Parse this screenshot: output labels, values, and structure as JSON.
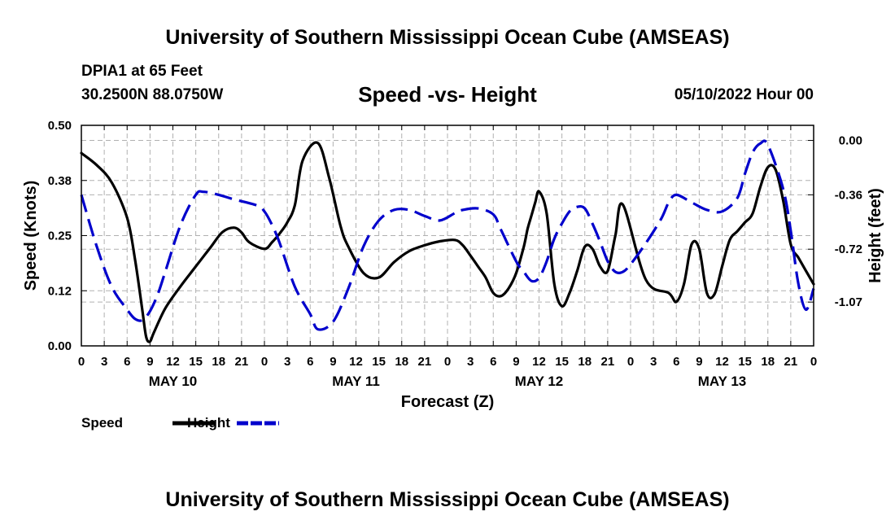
{
  "page": {
    "title_top": "University of Southern Mississippi Ocean Cube (AMSEAS)",
    "title_bottom": "University of Southern Mississippi Ocean Cube (AMSEAS)",
    "station": "DPIA1 at 65 Feet",
    "coordinates": "30.2500N  88.0750W",
    "subtitle": "Speed -vs- Height",
    "datetime": "05/10/2022 Hour 00"
  },
  "chart_data": {
    "type": "line",
    "title": "Speed -vs- Height",
    "xlabel": "Forecast (Z)",
    "ylabel": "Speed (Knots)",
    "y2label": "Height (feet)",
    "xlim": [
      0,
      96
    ],
    "ylim": [
      0,
      0.5
    ],
    "y2lim": [
      -1.36,
      0.1
    ],
    "yticks": [
      "0.00",
      "0.12",
      "0.25",
      "0.38",
      "0.50"
    ],
    "yticks_values": [
      0,
      0.125,
      0.25,
      0.375,
      0.5
    ],
    "y2ticks": [
      "0.00",
      "-0.36",
      "-0.72",
      "-1.07"
    ],
    "y2ticks_values": [
      0,
      -0.36,
      -0.72,
      -1.07
    ],
    "xtick_labels": [
      "0",
      "3",
      "6",
      "9",
      "12",
      "15",
      "18",
      "21",
      "0",
      "3",
      "6",
      "9",
      "12",
      "15",
      "18",
      "21",
      "0",
      "3",
      "6",
      "9",
      "12",
      "15",
      "18",
      "21",
      "0",
      "3",
      "6",
      "9",
      "12",
      "15",
      "18",
      "21",
      "0"
    ],
    "day_labels": [
      {
        "label": "MAY 10",
        "x": 12
      },
      {
        "label": "MAY 11",
        "x": 36
      },
      {
        "label": "MAY 12",
        "x": 60
      },
      {
        "label": "MAY 13",
        "x": 84
      }
    ],
    "grid": true,
    "legend": [
      "Speed",
      "Height"
    ],
    "series": [
      {
        "name": "Speed",
        "color": "#000000",
        "style": "solid",
        "axis": "left",
        "x": [
          0,
          2,
          4,
          6,
          7,
          8,
          8.5,
          9,
          9.5,
          11,
          13,
          15,
          17,
          18.5,
          20,
          21,
          22,
          24,
          25,
          26,
          27,
          28,
          29,
          31,
          32.5,
          34,
          35,
          37,
          39,
          41,
          43,
          45,
          47,
          49,
          50,
          51,
          52,
          53,
          54,
          55,
          56,
          57,
          58,
          58.5,
          59,
          59.5,
          60,
          61,
          62,
          63,
          64,
          65,
          66,
          67,
          68,
          69,
          70,
          71,
          74,
          77,
          78,
          79,
          80,
          81,
          82,
          83,
          84,
          85,
          86,
          87,
          88,
          89,
          90,
          91,
          92,
          93,
          94,
          95,
          96
        ],
        "values": [
          0.437,
          0.41,
          0.37,
          0.29,
          0.2,
          0.08,
          0.02,
          0.01,
          0.03,
          0.085,
          0.135,
          0.18,
          0.225,
          0.258,
          0.268,
          0.257,
          0.235,
          0.22,
          0.235,
          0.255,
          0.28,
          0.32,
          0.42,
          0.46,
          0.38,
          0.27,
          0.225,
          0.165,
          0.155,
          0.19,
          0.215,
          0.228,
          0.237,
          0.24,
          0.228,
          0.205,
          0.18,
          0.155,
          0.12,
          0.113,
          0.13,
          0.165,
          0.225,
          0.265,
          0.295,
          0.325,
          0.35,
          0.3,
          0.14,
          0.09,
          0.12,
          0.17,
          0.225,
          0.22,
          0.18,
          0.17,
          0.25,
          0.32,
          0.15,
          0.12,
          0.1,
          0.14,
          0.23,
          0.22,
          0.12,
          0.117,
          0.18,
          0.24,
          0.26,
          0.28,
          0.3,
          0.36,
          0.405,
          0.4,
          0.33,
          0.23,
          0.2,
          0.17,
          0.14
        ]
      },
      {
        "name": "Height",
        "color": "#0000cc",
        "style": "dashed",
        "axis": "right",
        "x": [
          0,
          2,
          4,
          6,
          7,
          8,
          9,
          10,
          11,
          13,
          15,
          16,
          18,
          20,
          23,
          24,
          25,
          26,
          28,
          30,
          31,
          33,
          35,
          37,
          39,
          41,
          43,
          45,
          47,
          49,
          50,
          52,
          54,
          55,
          57,
          58,
          59,
          60,
          61,
          62,
          63,
          64,
          65,
          66,
          67,
          68,
          69,
          70,
          71,
          72,
          74,
          76,
          77,
          78,
          80,
          82,
          84,
          86,
          87,
          88,
          89,
          90,
          92,
          93,
          94,
          95,
          96
        ],
        "values": [
          -0.36,
          -0.7,
          -0.97,
          -1.12,
          -1.18,
          -1.19,
          -1.13,
          -1.02,
          -0.87,
          -0.56,
          -0.36,
          -0.34,
          -0.36,
          -0.39,
          -0.43,
          -0.47,
          -0.56,
          -0.68,
          -0.97,
          -1.15,
          -1.25,
          -1.2,
          -0.98,
          -0.7,
          -0.53,
          -0.46,
          -0.46,
          -0.5,
          -0.53,
          -0.48,
          -0.46,
          -0.45,
          -0.49,
          -0.59,
          -0.8,
          -0.87,
          -0.93,
          -0.91,
          -0.8,
          -0.65,
          -0.55,
          -0.47,
          -0.44,
          -0.45,
          -0.55,
          -0.67,
          -0.8,
          -0.87,
          -0.87,
          -0.82,
          -0.68,
          -0.52,
          -0.41,
          -0.36,
          -0.41,
          -0.46,
          -0.47,
          -0.38,
          -0.22,
          -0.08,
          -0.02,
          -0.03,
          -0.32,
          -0.6,
          -0.95,
          -1.12,
          -0.98
        ]
      }
    ]
  }
}
